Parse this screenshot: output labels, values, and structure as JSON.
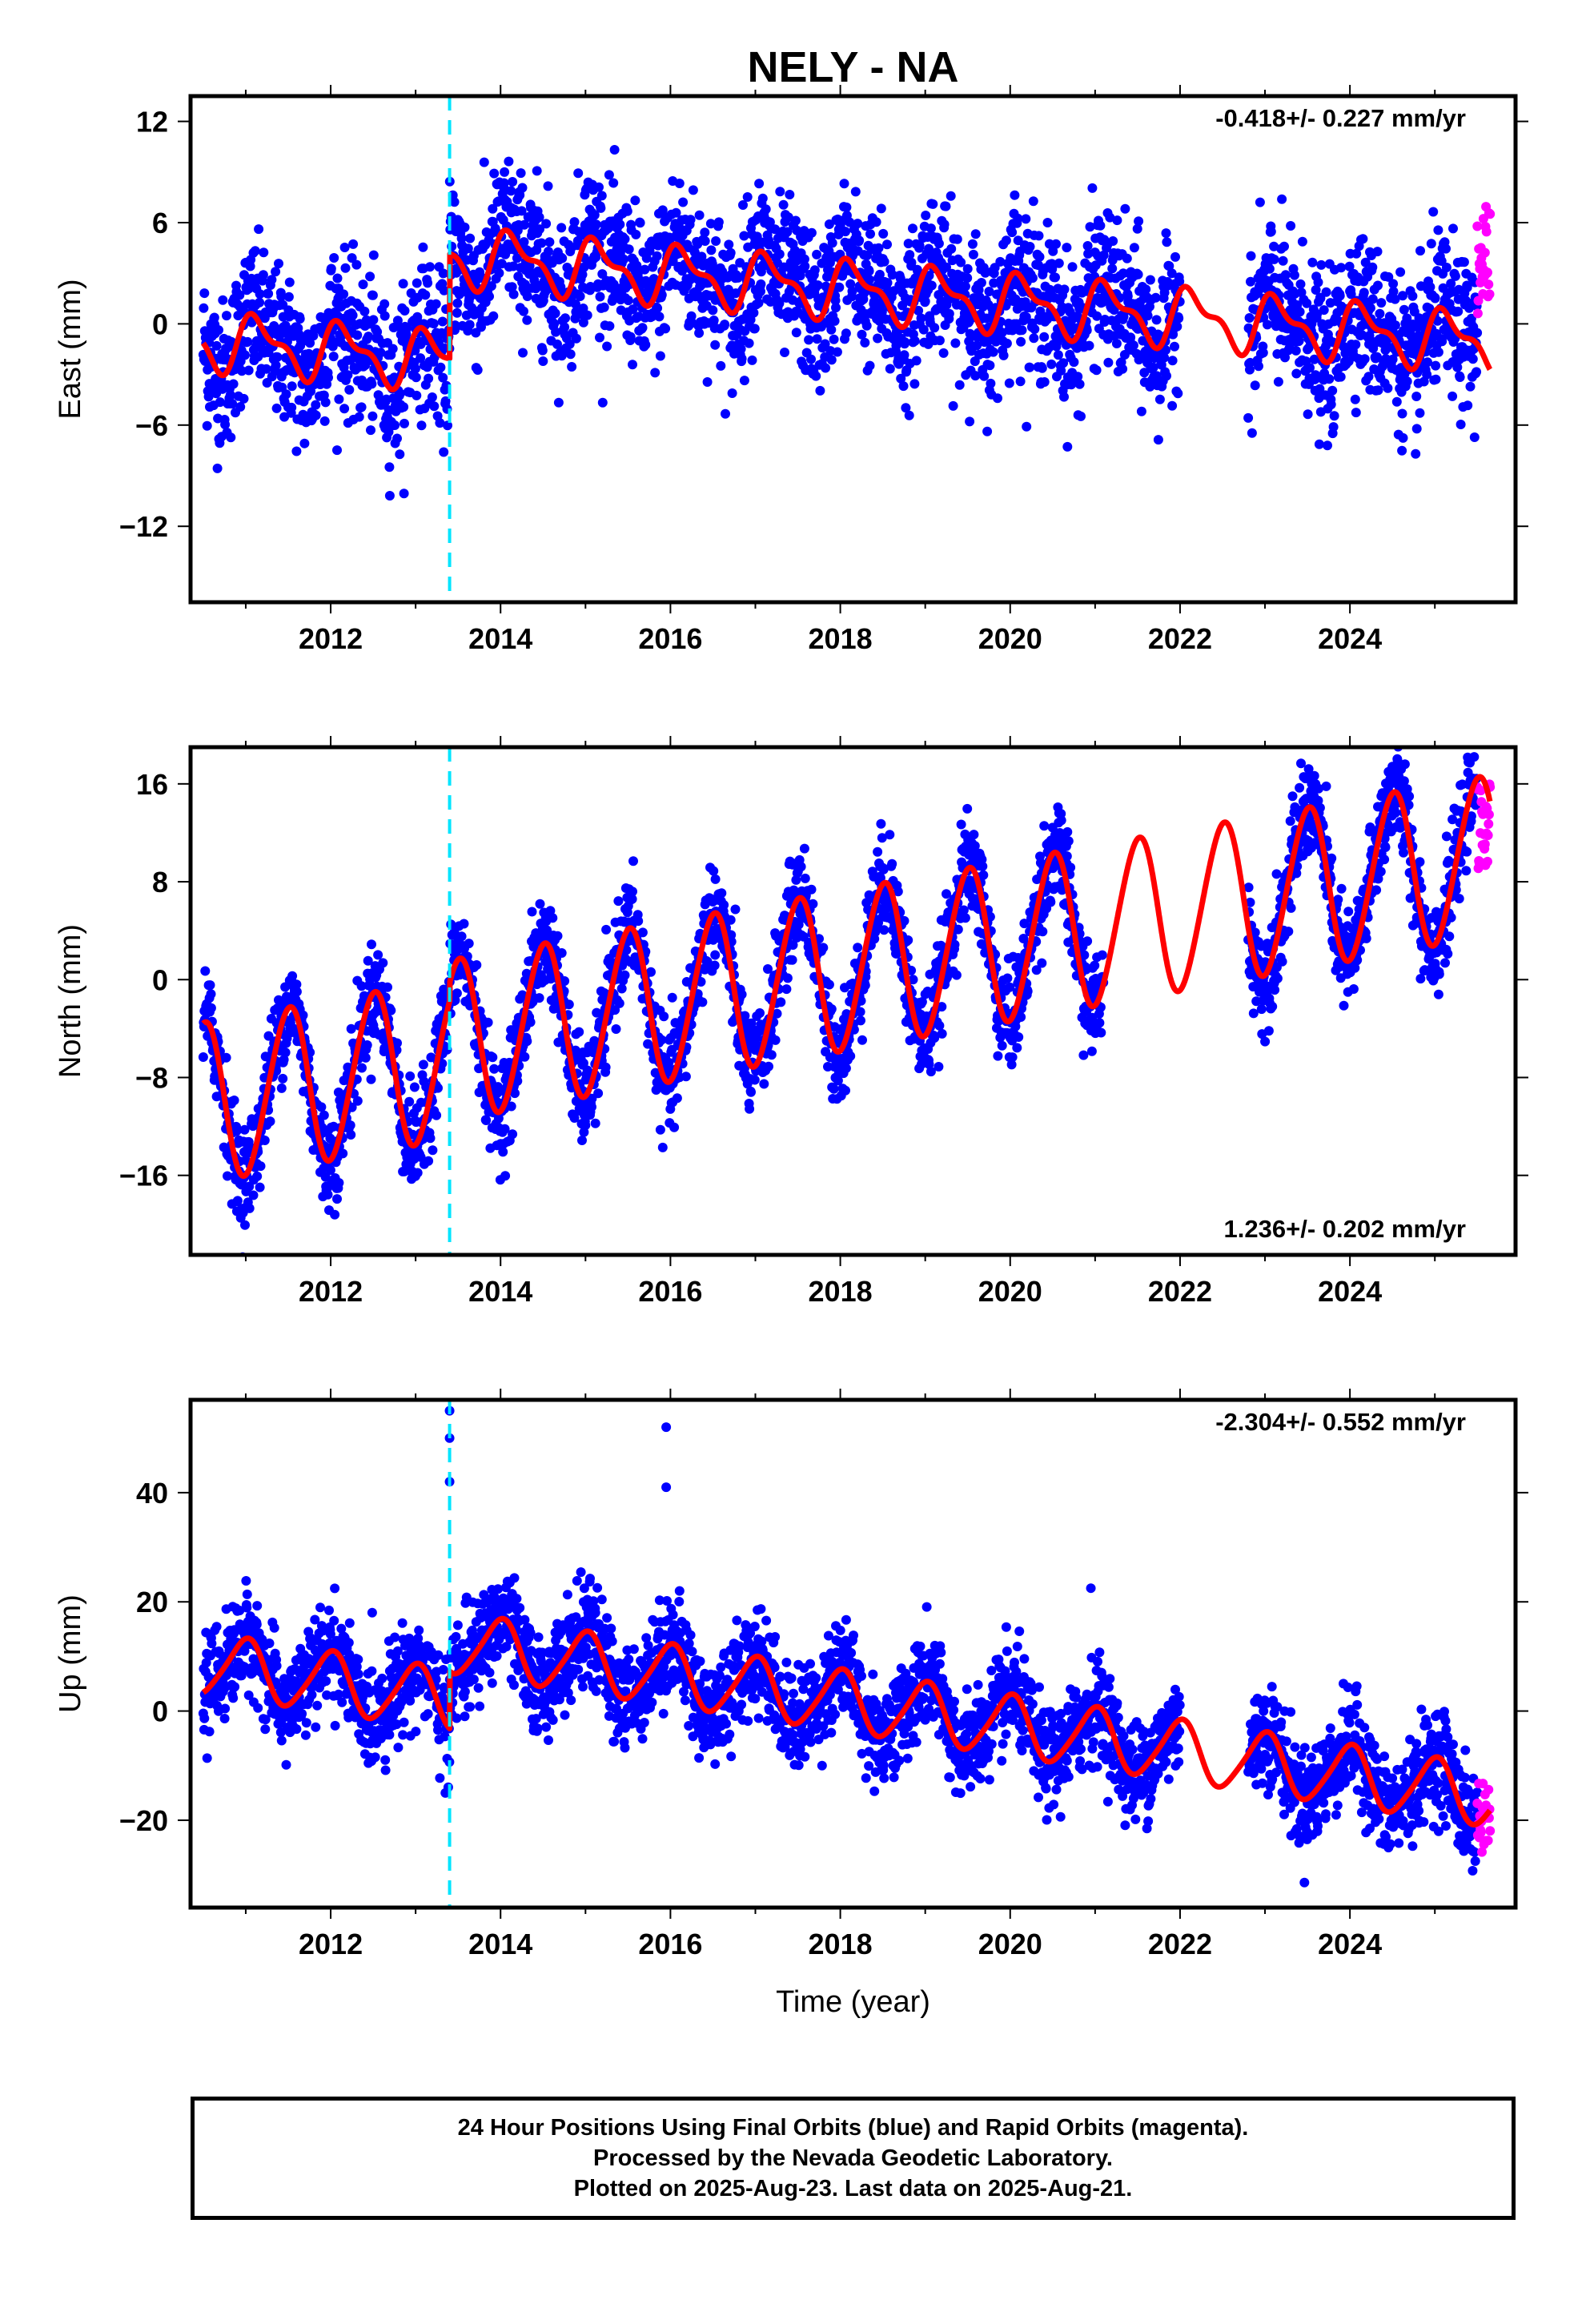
{
  "title": "NELY - NA",
  "xlabel": "Time (year)",
  "x_ticks": [
    2012,
    2014,
    2016,
    2018,
    2020,
    2022,
    2024
  ],
  "xlim": [
    2010.35,
    2025.95
  ],
  "offset_epoch": 2013.4,
  "colors": {
    "final": "#0000ff",
    "rapid": "#ff00ff",
    "model": "#ff0000",
    "offset": "#00e5ff"
  },
  "chart_data": [
    {
      "type": "scatter",
      "ylabel": "East (mm)",
      "ylim": [
        -16.5,
        13.5
      ],
      "yticks": [
        12,
        6,
        0,
        -6,
        -12
      ],
      "rate": "-0.418+/- 0.227 mm/yr",
      "rate_position": "top-right",
      "model": {
        "start": 2010.5,
        "end": 2025.65,
        "offset_epoch": 2013.4,
        "level_before": -2.2,
        "level_after": 4.0,
        "rate": -0.418,
        "annual_amp": 1.5,
        "annual_phase": 0.6,
        "semiannual_amp": 0.7,
        "semiannual_phase": 1.4
      },
      "scatter_sd": 2.2,
      "gap": [
        2022.0,
        2022.8
      ],
      "rapid": {
        "start": 2025.5,
        "end": 2025.65,
        "center": 3.5,
        "spread": 3.5
      }
    },
    {
      "type": "scatter",
      "ylabel": "North (mm)",
      "ylim": [
        -22.5,
        19.0
      ],
      "yticks": [
        16,
        8,
        0,
        -8,
        -16
      ],
      "rate": "1.236+/- 0.202 mm/yr",
      "rate_position": "bottom-right",
      "model": {
        "start": 2010.5,
        "end": 2025.65,
        "offset_epoch": 2013.4,
        "level_before": -6.5,
        "level_after": -5.0,
        "rate": 1.236,
        "annual_amp": 6.5,
        "annual_phase": 4.7,
        "semiannual_amp": 0.5,
        "semiannual_phase": 0.0
      },
      "scatter_sd": 2.0,
      "gap": [
        2021.1,
        2022.8
      ],
      "rapid": {
        "start": 2025.5,
        "end": 2025.65,
        "center": 12.5,
        "spread": 3.5
      }
    },
    {
      "type": "scatter",
      "ylabel": "Up (mm)",
      "ylim": [
        -36.0,
        57.0
      ],
      "yticks": [
        40,
        20,
        0,
        -20
      ],
      "rate": "-2.304+/- 0.552 mm/yr",
      "rate_position": "top-right",
      "model": {
        "start": 2010.5,
        "end": 2025.65,
        "offset_epoch": 2013.4,
        "level_before": 2.0,
        "level_after": 12.5,
        "rate": -2.304,
        "annual_amp": 5.5,
        "annual_phase": 1.6,
        "semiannual_amp": 0.8,
        "semiannual_phase": 0.3
      },
      "scatter_sd": 4.5,
      "gap": [
        2022.0,
        2022.8
      ],
      "outliers": [
        [
          2013.4,
          55
        ],
        [
          2013.4,
          50
        ],
        [
          2013.4,
          42
        ],
        [
          2015.95,
          52
        ],
        [
          2015.95,
          41
        ],
        [
          2020.95,
          22.5
        ],
        [
          2013.35,
          -15
        ]
      ],
      "rapid": {
        "start": 2025.5,
        "end": 2025.65,
        "center": -20,
        "spread": 7
      }
    }
  ],
  "footer": {
    "line1": "24 Hour Positions Using Final Orbits (blue) and Rapid Orbits (magenta).",
    "line2": "Processed by the Nevada Geodetic Laboratory.",
    "line3": "Plotted on 2025-Aug-23. Last data on 2025-Aug-21."
  }
}
